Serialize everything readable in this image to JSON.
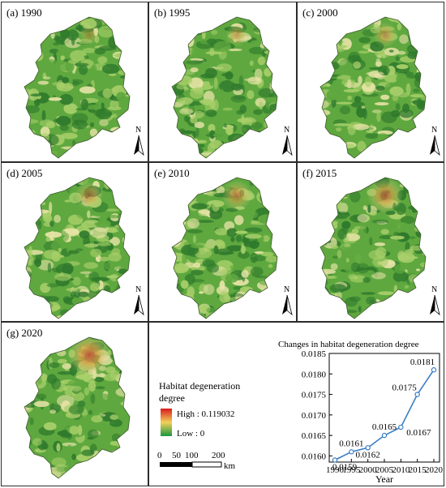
{
  "panels": [
    {
      "id": "a",
      "label": "(a) 1990",
      "year": 1990,
      "hotspot": 0.15
    },
    {
      "id": "b",
      "label": "(b) 1995",
      "year": 1995,
      "hotspot": 0.25
    },
    {
      "id": "c",
      "label": "(c) 2000",
      "year": 2000,
      "hotspot": 0.35
    },
    {
      "id": "d",
      "label": "(d) 2005",
      "year": 2005,
      "hotspot": 0.45
    },
    {
      "id": "e",
      "label": "(e) 2010",
      "year": 2010,
      "hotspot": 0.55
    },
    {
      "id": "f",
      "label": "(f) 2015",
      "year": 2015,
      "hotspot": 0.75
    },
    {
      "id": "g",
      "label": "(g) 2020",
      "year": 2020,
      "hotspot": 1.0
    }
  ],
  "north_label": "N",
  "legend": {
    "title_line1": "Habitat degeneration",
    "title_line2": "degree",
    "high": "High : 0.119032",
    "low": "Low : 0",
    "colors": [
      "#d7191c",
      "#f2d15a",
      "#1a9641"
    ]
  },
  "scalebar": {
    "ticks": [
      "0",
      "50",
      "100",
      "200"
    ],
    "unit": "km"
  },
  "colors": {
    "map_dark": "#2f7a2c",
    "map_mid": "#5fa83f",
    "map_light": "#a8cf6a",
    "map_pale": "#e6e3a6",
    "hot": "#d04a3a",
    "line": "#3a7ec6"
  },
  "chart_data": {
    "type": "line",
    "title": "Changes in habitat degeneration degree",
    "xlabel": "Year",
    "ylabel": "",
    "x": [
      1990,
      1995,
      2000,
      2005,
      2010,
      2015,
      2020
    ],
    "values": [
      0.0159,
      0.0161,
      0.0162,
      0.0165,
      0.0167,
      0.0175,
      0.0181
    ],
    "data_labels": [
      "0.0159",
      "0.0161",
      "0.0162",
      "0.0165",
      "0.0167",
      "0.0175",
      "0.0181"
    ],
    "yticks": [
      "0.0160",
      "0.0165",
      "0.0170",
      "0.0175",
      "0.0180",
      "0.0185"
    ],
    "ytick_values": [
      0.016,
      0.0165,
      0.017,
      0.0175,
      0.018,
      0.0185
    ],
    "xticks": [
      "1990",
      "1995",
      "2000",
      "2005",
      "2010",
      "2015",
      "2020"
    ],
    "ylim": [
      0.01585,
      0.0185
    ],
    "xlim": [
      1990,
      2020
    ],
    "grid": false,
    "line_color": "#3a7ec6"
  }
}
